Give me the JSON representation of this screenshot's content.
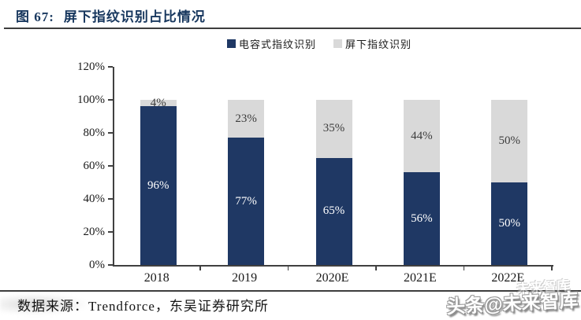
{
  "figure": {
    "label": "图 67:",
    "title": "屏下指纹识别占比情况"
  },
  "chart_data": {
    "type": "bar",
    "stacked": true,
    "categories": [
      "2018",
      "2019",
      "2020E",
      "2021E",
      "2022E"
    ],
    "series": [
      {
        "name": "电容式指纹识别",
        "color": "#1f3864",
        "label_color": "#ffffff",
        "values": [
          96,
          77,
          65,
          56,
          50
        ]
      },
      {
        "name": "屏下指纹识别",
        "color": "#d9d9d9",
        "label_color": "#3d3d3d",
        "values": [
          4,
          23,
          35,
          44,
          50
        ]
      }
    ],
    "value_suffix": "%",
    "title": "",
    "xlabel": "",
    "ylabel": "",
    "ylim": [
      0,
      120
    ],
    "ytick_step": 20,
    "ytick_labels": [
      "0%",
      "20%",
      "40%",
      "60%",
      "80%",
      "100%",
      "120%"
    ],
    "legend_position": "top-center",
    "grid": false
  },
  "footer": {
    "source": "数据来源：Trendforce，东吴证券研究所"
  },
  "watermark": {
    "text": "头条@未来智库",
    "ghost_text": "未来智库"
  }
}
